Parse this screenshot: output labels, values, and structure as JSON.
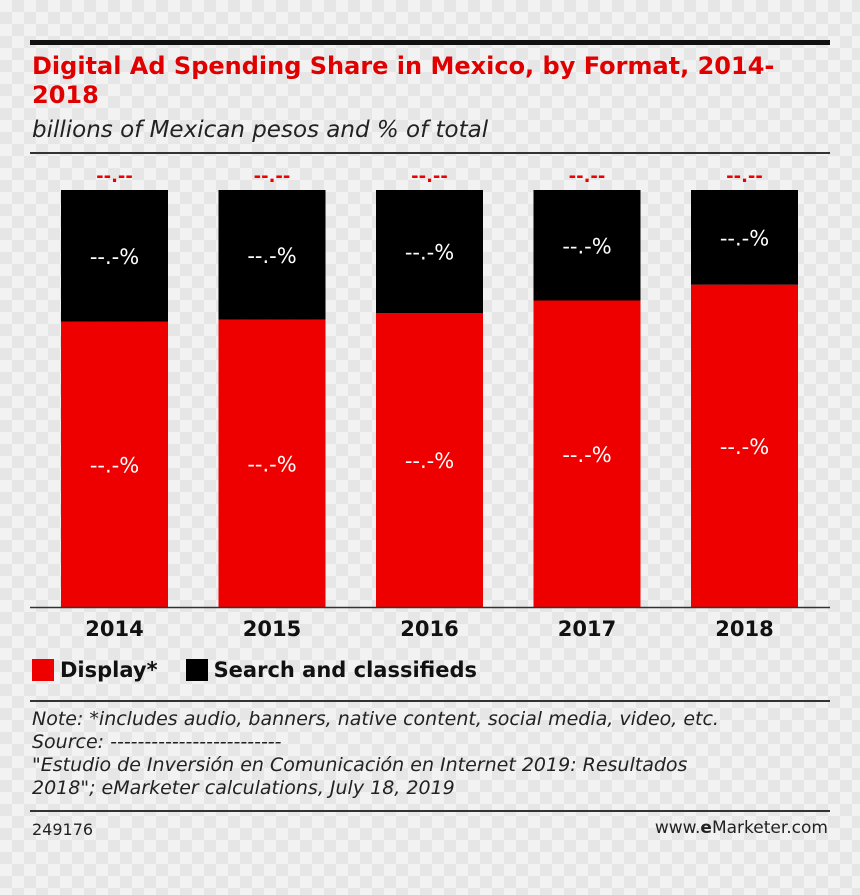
{
  "chart_data": {
    "type": "bar",
    "stacked": true,
    "title": "Digital Ad Spending Share in Mexico, by Format, 2014-2018",
    "subtitle": "billions of Mexican pesos and % of total",
    "categories": [
      "2014",
      "2015",
      "2016",
      "2017",
      "2018"
    ],
    "totals_labels": [
      "--.--",
      "--.--",
      "--.--",
      "--.--",
      "--.--"
    ],
    "series": [
      {
        "name": "Display*",
        "color": "#ee0000",
        "values": [
          68.4,
          68.9,
          70.5,
          73.5,
          77.3
        ],
        "labels": [
          "--.-%",
          "--.-%",
          "--.-%",
          "--.-%",
          "--.-%"
        ]
      },
      {
        "name": "Search and classifieds",
        "color": "#000000",
        "values": [
          31.6,
          31.1,
          29.5,
          26.5,
          22.7
        ],
        "labels": [
          "--.-%",
          "--.-%",
          "--.-%",
          "--.-%",
          "--.-%"
        ]
      }
    ],
    "ylim": [
      0,
      100
    ],
    "legend": "bottom-left",
    "grid": false
  },
  "notes": {
    "line1": "Note: *includes audio, banners, native content, social media, video, etc.",
    "line2": "Source: -------------------------",
    "line3": "\"Estudio de Inversión en Comunicación en Internet 2019: Resultados",
    "line4": "2018\"; eMarketer calculations, July 18, 2019"
  },
  "footer": {
    "id": "249176",
    "brand_prefix": "www.",
    "brand_bold": "e",
    "brand_suffix": "Marketer.com"
  }
}
